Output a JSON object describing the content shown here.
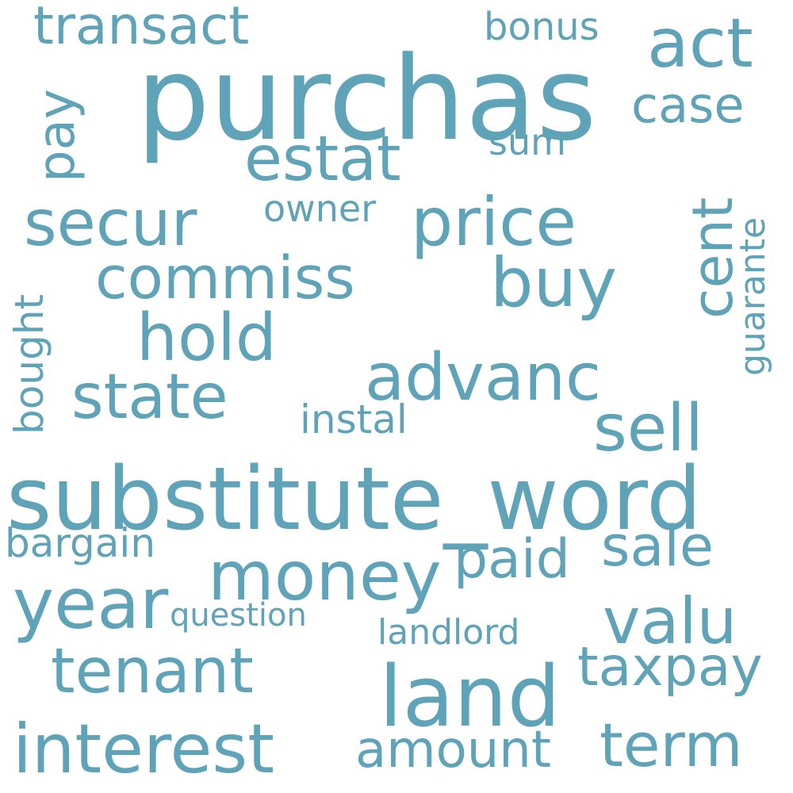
{
  "colors": {
    "word": "#5fa3b8",
    "background": "#ffffff"
  },
  "words": {
    "purchas": "purchas",
    "substitute_word": "substitute_word",
    "land": "land",
    "interest": "interest",
    "money": "money",
    "year": "year",
    "price": "price",
    "advanc": "advanc",
    "secur": "secur",
    "commiss": "commiss",
    "hold": "hold",
    "state": "state",
    "estat": "estat",
    "buy": "buy",
    "act": "act",
    "cent": "cent",
    "sell": "sell",
    "tenant": "tenant",
    "valu": "valu",
    "term": "term",
    "paid": "paid",
    "sale": "sale",
    "taxpay": "taxpay",
    "amount": "amount",
    "transact": "transact",
    "case": "case",
    "pay": "pay",
    "bonus": "bonus",
    "sum": "sum",
    "owner": "owner",
    "instal": "instal",
    "bargain": "bargain",
    "question": "question",
    "landlord": "landlord",
    "bought": "bought",
    "guarante": "guarante"
  }
}
